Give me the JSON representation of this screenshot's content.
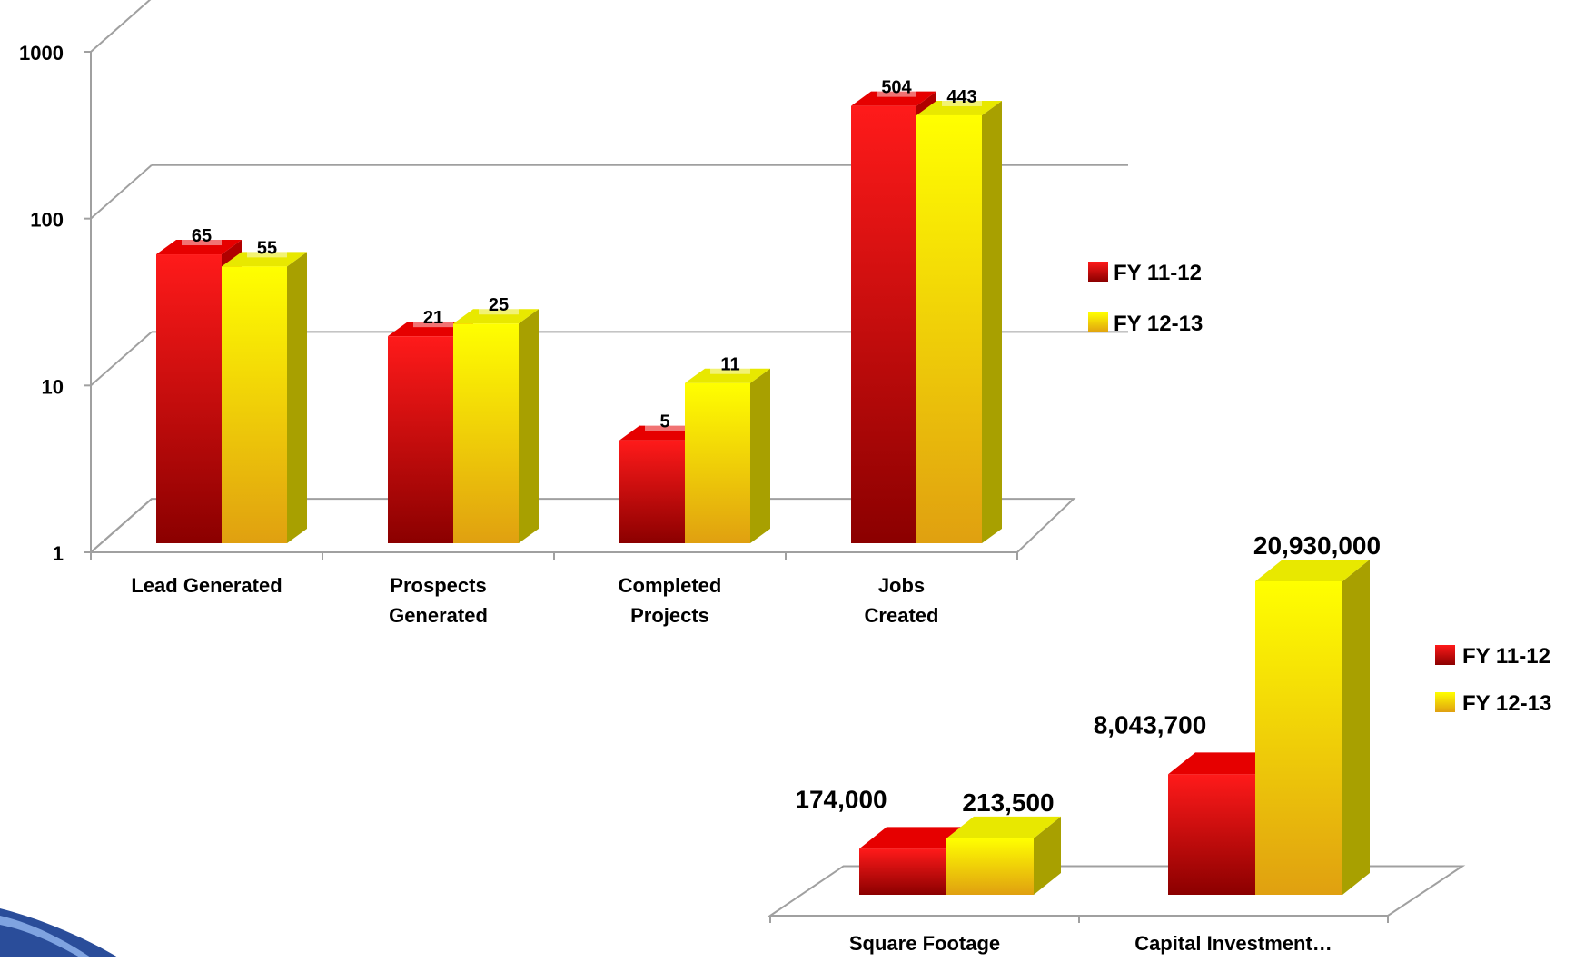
{
  "colors": {
    "series_1_top": "#ff1a1a",
    "series_1_bottom": "#8b0000",
    "series_1_side": "#b00000",
    "series_1_cap": "#e60000",
    "series_2_top": "#ffff00",
    "series_2_bottom": "#e0a010",
    "series_2_side": "#a8a000",
    "series_2_cap": "#e8e800",
    "gridline": "#a0a0a0",
    "text": "#000000"
  },
  "chart_data": [
    {
      "type": "bar",
      "categories": [
        "Lead Generated",
        "Prospects\nGenerated",
        "Completed\nProjects",
        "Jobs\nCreated"
      ],
      "series": [
        {
          "name": "FY 11-12",
          "values": [
            65,
            21,
            5,
            504
          ]
        },
        {
          "name": "FY 12-13",
          "values": [
            55,
            25,
            11,
            443
          ]
        }
      ],
      "data_labels": [
        [
          "65",
          "21",
          "5",
          "504"
        ],
        [
          "55",
          "25",
          "11",
          "443"
        ]
      ],
      "y_scale": "log",
      "ylim": [
        1,
        1000
      ],
      "yticks": [
        1,
        10,
        100,
        1000
      ],
      "ytick_labels": [
        "1",
        "10",
        "100",
        "1000"
      ],
      "grid": true,
      "legend": [
        "FY 11-12",
        "FY 12-13"
      ],
      "legend_position": "right",
      "style": "3d-column"
    },
    {
      "type": "bar",
      "categories": [
        "Square Footage",
        "Capital Investment…"
      ],
      "series": [
        {
          "name": "FY 11-12",
          "values": [
            174000,
            8043700
          ]
        },
        {
          "name": "FY 12-13",
          "values": [
            213500,
            20930000
          ]
        }
      ],
      "data_labels": [
        [
          "174,000",
          "8,043,700"
        ],
        [
          "213,500",
          "20,930,000"
        ]
      ],
      "grid": false,
      "legend": [
        "FY 11-12",
        "FY 12-13"
      ],
      "legend_position": "right",
      "style": "3d-column"
    }
  ]
}
